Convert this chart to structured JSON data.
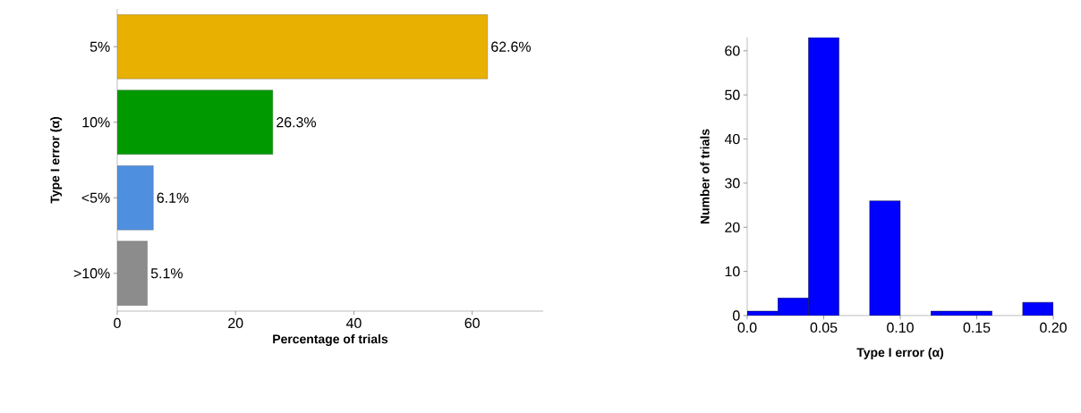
{
  "chart_data": [
    {
      "type": "bar",
      "orientation": "horizontal",
      "xlabel": "Percentage of trials",
      "ylabel": "Type I error (α)",
      "categories": [
        "5%",
        "10%",
        "<5%",
        ">10%"
      ],
      "values": [
        62.6,
        26.3,
        6.1,
        5.1
      ],
      "colors": [
        "#e8b000",
        "#009a00",
        "#4f8fe0",
        "#8c8c8c"
      ],
      "value_labels": [
        "62.6%",
        "26.3%",
        "6.1%",
        "5.1%"
      ],
      "xlim": [
        0,
        72
      ],
      "xticks": [
        0,
        20,
        40,
        60
      ]
    },
    {
      "type": "histogram",
      "xlabel": "Type I error (α)",
      "ylabel": "Number of trials",
      "bins": [
        0,
        0.02,
        0.04,
        0.06,
        0.08,
        0.1,
        0.12,
        0.14,
        0.16,
        0.18,
        0.2
      ],
      "values": [
        1,
        4,
        63,
        0,
        26,
        0,
        1,
        1,
        0,
        3
      ],
      "color": "#0000ff",
      "xlim": [
        0,
        0.2
      ],
      "ylim": [
        0,
        63
      ],
      "xticks": [
        {
          "value": 0,
          "label": "0.0"
        },
        {
          "value": 0.05,
          "label": "0.05"
        },
        {
          "value": 0.1,
          "label": "0.10"
        },
        {
          "value": 0.15,
          "label": "0.15"
        },
        {
          "value": 0.2,
          "label": "0.20"
        }
      ],
      "yticks": [
        0,
        10,
        20,
        30,
        40,
        50,
        60
      ]
    }
  ]
}
